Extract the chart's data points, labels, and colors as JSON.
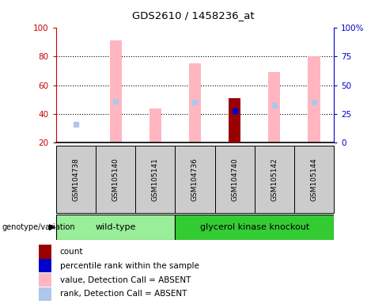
{
  "title": "GDS2610 / 1458236_at",
  "samples": [
    "GSM104738",
    "GSM105140",
    "GSM105141",
    "GSM104736",
    "GSM104740",
    "GSM105142",
    "GSM105144"
  ],
  "pink_bar_top": [
    null,
    91,
    44,
    75,
    null,
    69,
    80
  ],
  "pink_bar_bottom": [
    20,
    20,
    20,
    20,
    20,
    20,
    20
  ],
  "rank_absent_dots": [
    33,
    49,
    null,
    48,
    null,
    46,
    48
  ],
  "count_bars": [
    null,
    null,
    null,
    null,
    51,
    null,
    null
  ],
  "count_bar_bottom": [
    20,
    20,
    20,
    20,
    20,
    20,
    20
  ],
  "percentile_dots": [
    null,
    null,
    null,
    null,
    42,
    null,
    null
  ],
  "ylim_left": [
    20,
    100
  ],
  "ylim_right": [
    0,
    100
  ],
  "yticks_left": [
    20,
    40,
    60,
    80,
    100
  ],
  "ytick_labels_left": [
    "20",
    "40",
    "60",
    "80",
    "100"
  ],
  "yticks_right": [
    0,
    25,
    50,
    75,
    100
  ],
  "ytick_labels_right": [
    "0",
    "25",
    "50",
    "75",
    "100%"
  ],
  "pink_bar_color": "#FFB6C1",
  "rank_dot_color": "#AFC7E8",
  "count_bar_color": "#990000",
  "percentile_dot_color": "#0000CC",
  "left_axis_color": "#CC0000",
  "right_axis_color": "#0000CC",
  "grid_color": "black",
  "sample_box_color": "#CCCCCC",
  "wt_color": "#99EE99",
  "gk_color": "#33CC33",
  "legend_items": [
    {
      "label": "count",
      "color": "#990000"
    },
    {
      "label": "percentile rank within the sample",
      "color": "#0000CC"
    },
    {
      "label": "value, Detection Call = ABSENT",
      "color": "#FFB6C1"
    },
    {
      "label": "rank, Detection Call = ABSENT",
      "color": "#AFC7E8"
    }
  ],
  "genotype_label": "genotype/variation",
  "figsize": [
    4.88,
    3.84
  ],
  "dpi": 100
}
